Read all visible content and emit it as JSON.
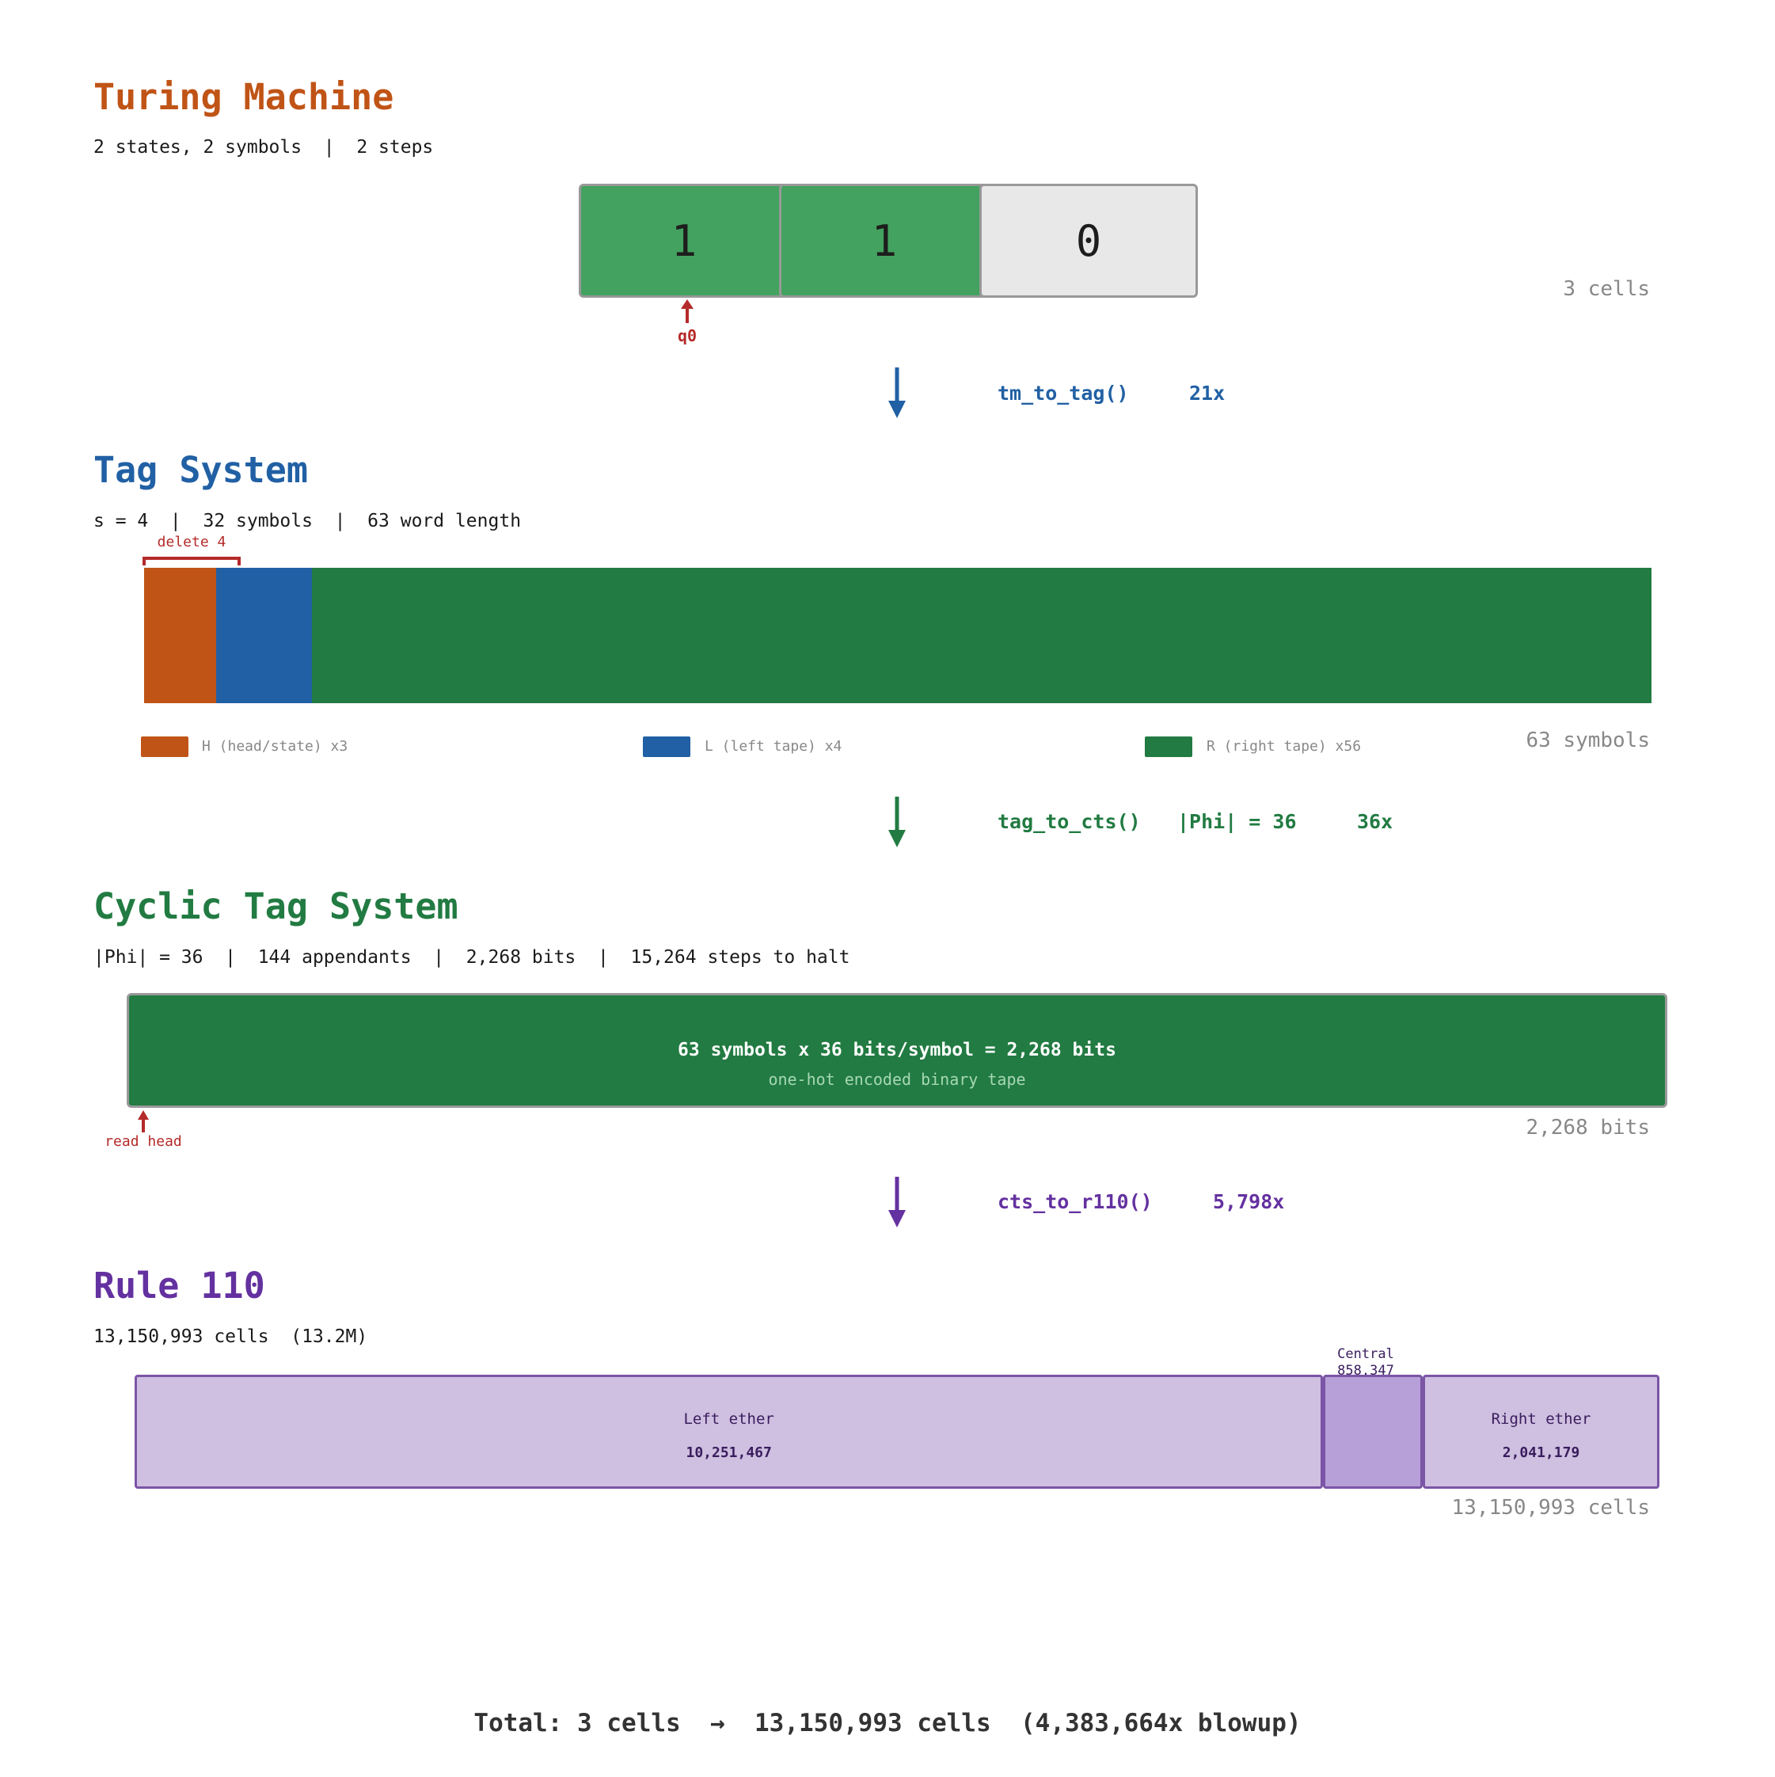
{
  "colors": {
    "tm": "#c05416",
    "tag": "#2160a4",
    "cts": "#227b42",
    "r110": "#6431a0",
    "cell_filled": "#43a25f",
    "cell_empty": "#e8e8e8",
    "pointer": "#b52a2a",
    "ether": "#cfbfe0",
    "central": "#b79fd8",
    "ether_border": "#7b55a6"
  },
  "tm": {
    "title": "Turing Machine",
    "subtitle": "2 states, 2 symbols  |  2 steps",
    "cells": [
      "1",
      "1",
      "0"
    ],
    "head_label": "q0",
    "count": "3 cells"
  },
  "arrow1": {
    "func": "tm_to_tag()",
    "factor": "21x"
  },
  "tag": {
    "title": "Tag System",
    "subtitle": "s = 4  |  32 symbols  |  63 word length",
    "delete_label": "delete 4",
    "segments": [
      {
        "name": "H",
        "count": 3
      },
      {
        "name": "L",
        "count": 4
      },
      {
        "name": "R",
        "count": 56
      }
    ],
    "legend": [
      "H (head/state) x3",
      "L (left tape) x4",
      "R (right tape) x56"
    ],
    "count": "63 symbols"
  },
  "arrow2": {
    "func": "tag_to_cts()",
    "extra": "|Phi| = 36",
    "factor": "36x"
  },
  "cts": {
    "title": "Cyclic Tag System",
    "subtitle": "|Phi| = 36  |  144 appendants  |  2,268 bits  |  15,264 steps to halt",
    "bar_main": "63 symbols x 36 bits/symbol = 2,268 bits",
    "bar_sub": "one-hot encoded binary tape",
    "head_label": "read head",
    "count": "2,268 bits"
  },
  "arrow3": {
    "func": "cts_to_r110()",
    "factor": "5,798x"
  },
  "r110": {
    "title": "Rule 110",
    "subtitle": "13,150,993 cells  (13.2M)",
    "left_label": "Left ether",
    "left_value": "10,251,467",
    "left_cells": 10251467,
    "central_label": "Central",
    "central_value": "858,347",
    "central_cells": 858347,
    "right_label": "Right ether",
    "right_value": "2,041,179",
    "right_cells": 2041179,
    "count": "13,150,993 cells"
  },
  "total": "Total: 3 cells  →  13,150,993 cells  (4,383,664x blowup)"
}
